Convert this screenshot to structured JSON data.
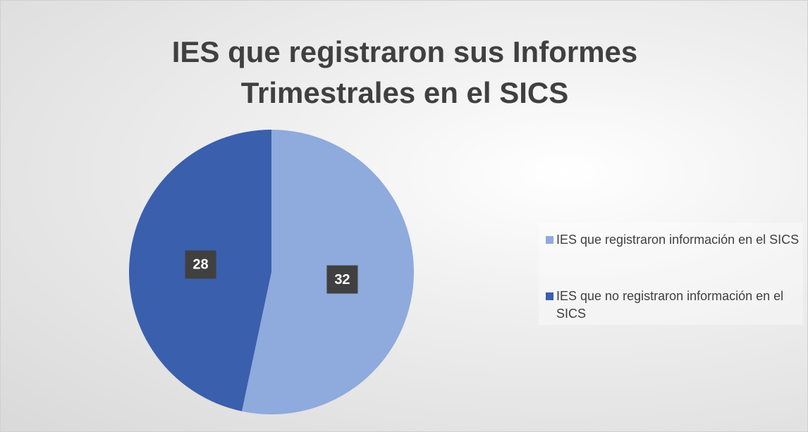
{
  "chart_data": {
    "type": "pie",
    "title": "IES que registraron sus Informes Trimestrales en el SICS",
    "categories": [
      "IES que registraron información en el SICS",
      "IES que no registraron información en el SICS"
    ],
    "values": [
      32,
      28
    ],
    "colors": [
      "#8faadc",
      "#3a5fad"
    ],
    "legend": "right"
  }
}
